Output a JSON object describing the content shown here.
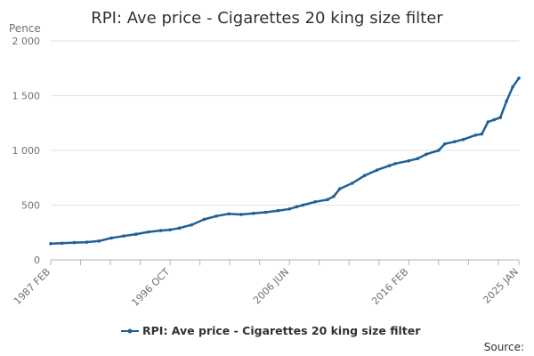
{
  "chart_data": {
    "type": "line",
    "title": "RPI: Ave price - Cigarettes 20 king size filter",
    "unit_label": "Pence",
    "xlabel": "",
    "ylabel": "",
    "x_tick_labels": [
      "1987 FEB",
      "1996 OCT",
      "2006 JUN",
      "2016 FEB",
      "2025 JAN"
    ],
    "x_tick_values": [
      1987.083,
      1996.75,
      2006.417,
      2016.083,
      2025.0
    ],
    "xlim": [
      1987.083,
      2025.0
    ],
    "y_ticks": [
      0,
      500,
      1000,
      1500,
      2000
    ],
    "y_tick_labels": [
      "0",
      "500",
      "1 000",
      "1 500",
      "2 000"
    ],
    "ylim": [
      0,
      2000
    ],
    "grid": "horizontal",
    "legend_position": "bottom",
    "series": [
      {
        "name": "RPI: Ave price - Cigarettes 20 king size filter",
        "color": "#206095",
        "x": [
          1987.083,
          1988.0,
          1989.0,
          1990.0,
          1991.0,
          1992.0,
          1993.0,
          1994.0,
          1995.0,
          1996.0,
          1996.75,
          1997.5,
          1998.5,
          1999.5,
          2000.5,
          2001.5,
          2002.5,
          2003.5,
          2004.5,
          2005.5,
          2006.417,
          2007.0,
          2007.5,
          2008.5,
          2009.5,
          2010.0,
          2010.5,
          2011.5,
          2012.5,
          2013.5,
          2014.5,
          2015.0,
          2016.083,
          2016.8,
          2017.5,
          2018.5,
          2019.0,
          2019.8,
          2020.5,
          2021.5,
          2022.0,
          2022.5,
          2023.0,
          2023.5,
          2024.0,
          2024.5,
          2025.0
        ],
        "values": [
          148,
          152,
          158,
          162,
          172,
          200,
          218,
          235,
          255,
          268,
          275,
          290,
          320,
          370,
          400,
          420,
          415,
          425,
          435,
          450,
          465,
          485,
          500,
          530,
          550,
          580,
          650,
          700,
          770,
          820,
          860,
          880,
          905,
          925,
          965,
          1000,
          1060,
          1080,
          1100,
          1140,
          1150,
          1260,
          1280,
          1300,
          1450,
          1580,
          1660
        ]
      }
    ]
  },
  "source_label": "Source:"
}
